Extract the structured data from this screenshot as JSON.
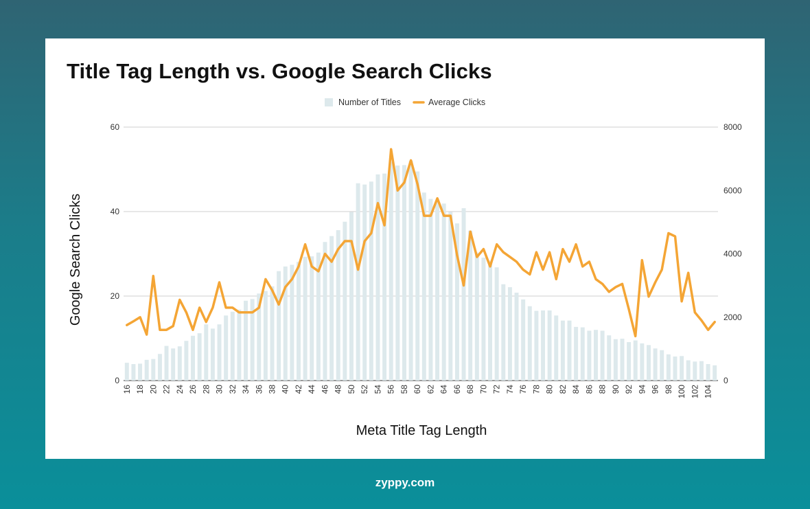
{
  "brand": "zyppy.com",
  "colors": {
    "bar": "#dde9ec",
    "line": "#f4a535",
    "grid": "#cfcfcf"
  },
  "chart_data": {
    "type": "bar",
    "title": "Title Tag Length vs. Google Search Clicks",
    "xlabel": "Meta Title Tag Length",
    "ylabel": "Google Search Clicks",
    "ylim_left": [
      0,
      60
    ],
    "yticks_left": [
      0,
      20,
      40,
      60
    ],
    "ylim_right": [
      0,
      8000
    ],
    "yticks_right": [
      0,
      2000,
      4000,
      6000,
      8000
    ],
    "x": [
      16,
      17,
      18,
      19,
      20,
      21,
      22,
      23,
      24,
      25,
      26,
      27,
      28,
      29,
      30,
      31,
      32,
      33,
      34,
      35,
      36,
      37,
      38,
      39,
      40,
      41,
      42,
      43,
      44,
      45,
      46,
      47,
      48,
      49,
      50,
      51,
      52,
      53,
      54,
      55,
      56,
      57,
      58,
      59,
      60,
      61,
      62,
      63,
      64,
      65,
      66,
      67,
      68,
      69,
      70,
      71,
      72,
      73,
      74,
      75,
      76,
      77,
      78,
      79,
      80,
      81,
      82,
      83,
      84,
      85,
      86,
      87,
      88,
      89,
      90,
      91,
      92,
      93,
      94,
      95,
      96,
      97,
      98,
      99,
      100,
      101,
      102,
      103,
      104,
      105
    ],
    "x_tick_labels": [
      "16",
      "18",
      "20",
      "22",
      "24",
      "26",
      "28",
      "30",
      "32",
      "34",
      "36",
      "38",
      "40",
      "42",
      "44",
      "46",
      "48",
      "50",
      "52",
      "54",
      "56",
      "58",
      "60",
      "62",
      "64",
      "66",
      "68",
      "70",
      "72",
      "74",
      "76",
      "78",
      "80",
      "82",
      "84",
      "86",
      "88",
      "90",
      "92",
      "94",
      "96",
      "98",
      "100",
      "102",
      "104"
    ],
    "grid": true,
    "legend_position": "top-center",
    "series": [
      {
        "name": "Number of Titles",
        "type": "bar",
        "axis": "left",
        "values": [
          4.2,
          3.9,
          4.0,
          4.9,
          5.1,
          6.3,
          8.2,
          7.6,
          8.1,
          9.4,
          10.6,
          11.2,
          13.3,
          12.3,
          13.3,
          15.4,
          16.3,
          16.8,
          18.9,
          19.3,
          20.6,
          21.2,
          22.3,
          25.9,
          27.0,
          27.4,
          28.1,
          29.3,
          29.4,
          30.3,
          32.8,
          34.2,
          35.6,
          37.6,
          39.9,
          46.7,
          46.4,
          47.1,
          48.8,
          49.0,
          51.8,
          50.9,
          51.0,
          52.0,
          49.5,
          44.5,
          43.0,
          42.5,
          41.9,
          39.9,
          37.2,
          40.8,
          35.5,
          30.3,
          29.1,
          28.4,
          26.8,
          22.8,
          22.1,
          20.8,
          19.2,
          17.6,
          16.5,
          16.6,
          16.6,
          15.4,
          14.2,
          14.2,
          12.7,
          12.6,
          11.8,
          12.0,
          11.8,
          10.7,
          9.8,
          9.9,
          9.1,
          9.5,
          8.8,
          8.4,
          7.6,
          7.2,
          6.2,
          5.7,
          5.8,
          4.8,
          4.5,
          4.6,
          3.9,
          3.6
        ]
      },
      {
        "name": "Average Clicks",
        "type": "line",
        "axis": "right",
        "values": [
          1750,
          1870,
          2000,
          1450,
          3300,
          1600,
          1600,
          1720,
          2550,
          2150,
          1600,
          2300,
          1850,
          2300,
          3100,
          2300,
          2300,
          2150,
          2150,
          2150,
          2300,
          3200,
          2850,
          2400,
          2950,
          3200,
          3600,
          4300,
          3600,
          3450,
          4000,
          3750,
          4150,
          4400,
          4400,
          3500,
          4400,
          4650,
          5600,
          4900,
          7300,
          6000,
          6250,
          6950,
          6200,
          5200,
          5200,
          5750,
          5200,
          5200,
          3950,
          3000,
          4700,
          3900,
          4150,
          3600,
          4300,
          4050,
          3900,
          3750,
          3500,
          3350,
          4050,
          3500,
          4050,
          3200,
          4150,
          3750,
          4300,
          3600,
          3750,
          3200,
          3050,
          2800,
          2950,
          3050,
          2250,
          1400,
          3800,
          2650,
          3100,
          3500,
          4650,
          4550,
          2500,
          3400,
          2150,
          1900,
          1600,
          1850
        ]
      }
    ]
  }
}
